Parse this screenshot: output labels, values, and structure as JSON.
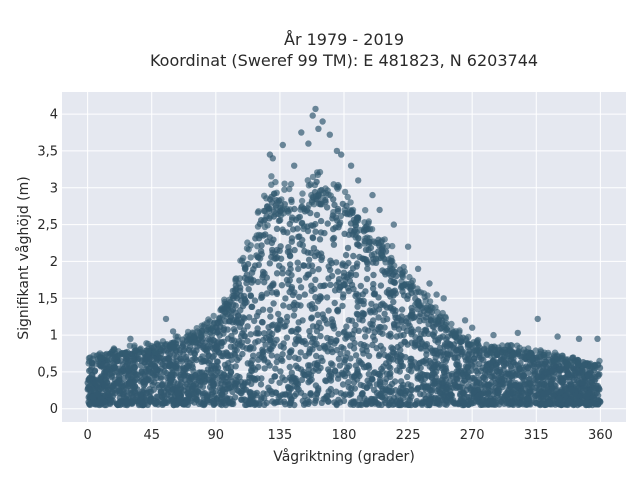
{
  "chart_data": {
    "type": "scatter",
    "title_lines": [
      "År 1979 - 2019",
      "Koordinat (Sweref 99 TM): E 481823, N 6203744"
    ],
    "xlabel": "Vågriktning (grader)",
    "ylabel": "Signifikant våghöjd (m)",
    "xlim": [
      -18,
      378
    ],
    "ylim": [
      -0.18,
      4.3
    ],
    "xticks": [
      0,
      45,
      90,
      135,
      180,
      225,
      270,
      315,
      360
    ],
    "xtick_labels": [
      "0",
      "45",
      "90",
      "135",
      "180",
      "225",
      "270",
      "315",
      "360"
    ],
    "yticks": [
      0,
      0.5,
      1,
      1.5,
      2,
      2.5,
      3,
      3.5,
      4
    ],
    "ytick_labels": [
      "0",
      "0,5",
      "1",
      "1,5",
      "2",
      "2,5",
      "3",
      "3,5",
      "4"
    ],
    "grid": true,
    "marker_color": "#335a70",
    "plot_bg": "#e5e8f0",
    "upper_envelope": {
      "x": [
        0,
        15,
        30,
        45,
        60,
        75,
        90,
        100,
        110,
        120,
        130,
        140,
        150,
        160,
        170,
        180,
        190,
        200,
        210,
        220,
        230,
        240,
        250,
        260,
        270,
        285,
        300,
        315,
        330,
        345,
        360
      ],
      "y": [
        0.65,
        0.75,
        0.8,
        0.85,
        0.9,
        1.0,
        1.2,
        1.5,
        2.0,
        2.5,
        3.0,
        2.9,
        2.7,
        3.1,
        3.0,
        2.8,
        2.6,
        2.4,
        2.2,
        1.9,
        1.6,
        1.4,
        1.2,
        1.0,
        0.9,
        0.8,
        0.8,
        0.75,
        0.7,
        0.65,
        0.6
      ]
    },
    "lower_bound": 0.05,
    "outliers": [
      {
        "x": 160,
        "y": 4.07
      },
      {
        "x": 158,
        "y": 3.98
      },
      {
        "x": 165,
        "y": 3.9
      },
      {
        "x": 162,
        "y": 3.8
      },
      {
        "x": 170,
        "y": 3.72
      },
      {
        "x": 150,
        "y": 3.75
      },
      {
        "x": 137,
        "y": 3.58
      },
      {
        "x": 175,
        "y": 3.5
      },
      {
        "x": 178,
        "y": 3.45
      },
      {
        "x": 185,
        "y": 3.3
      },
      {
        "x": 130,
        "y": 3.4
      },
      {
        "x": 128,
        "y": 3.45
      },
      {
        "x": 190,
        "y": 3.1
      },
      {
        "x": 200,
        "y": 2.9
      },
      {
        "x": 205,
        "y": 2.7
      },
      {
        "x": 215,
        "y": 2.5
      },
      {
        "x": 225,
        "y": 2.2
      },
      {
        "x": 232,
        "y": 1.9
      },
      {
        "x": 240,
        "y": 1.7
      },
      {
        "x": 245,
        "y": 1.55
      },
      {
        "x": 250,
        "y": 1.5
      },
      {
        "x": 265,
        "y": 1.2
      },
      {
        "x": 270,
        "y": 1.1
      },
      {
        "x": 285,
        "y": 1.0
      },
      {
        "x": 302,
        "y": 1.03
      },
      {
        "x": 316,
        "y": 1.22
      },
      {
        "x": 330,
        "y": 0.98
      },
      {
        "x": 345,
        "y": 0.95
      },
      {
        "x": 358,
        "y": 0.95
      },
      {
        "x": 55,
        "y": 1.22
      },
      {
        "x": 30,
        "y": 0.95
      },
      {
        "x": 60,
        "y": 1.05
      },
      {
        "x": 102,
        "y": 1.6
      },
      {
        "x": 110,
        "y": 1.95
      },
      {
        "x": 145,
        "y": 3.3
      },
      {
        "x": 155,
        "y": 3.6
      }
    ]
  }
}
